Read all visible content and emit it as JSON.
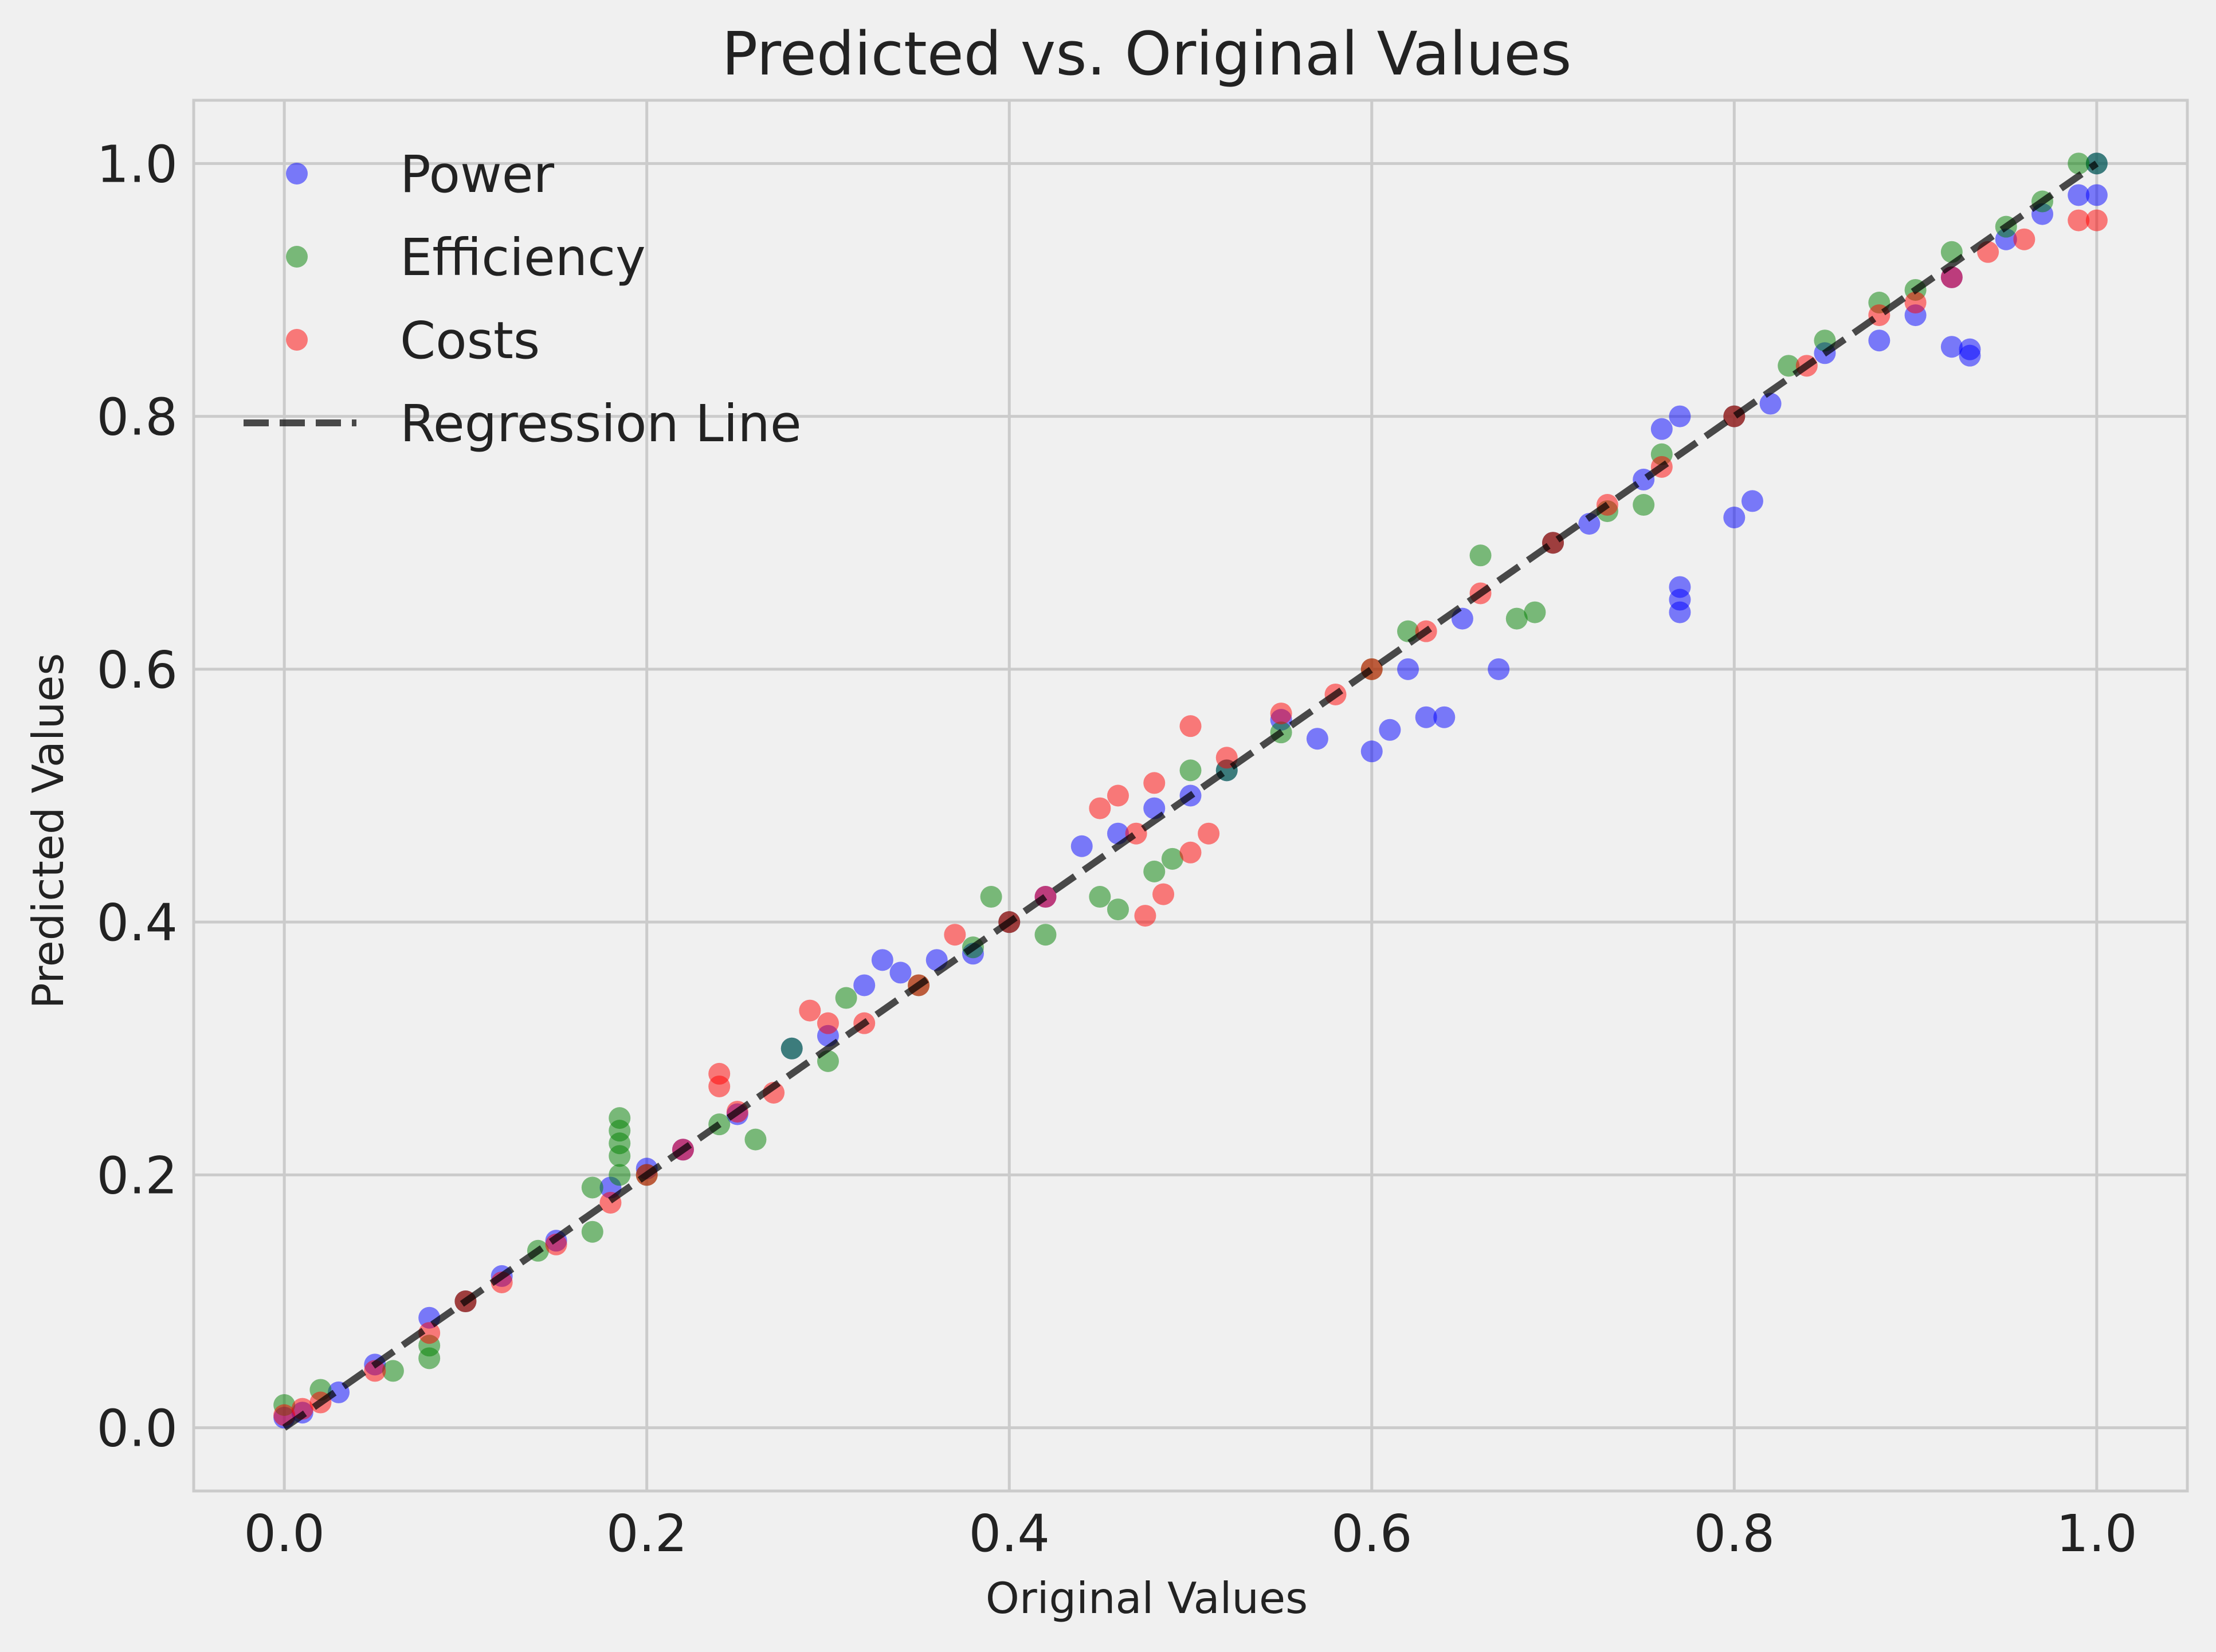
{
  "chart_data": {
    "type": "scatter",
    "title": "Predicted vs. Original Values",
    "xlabel": "Original Values",
    "ylabel": "Predicted Values",
    "xlim": [
      -0.05,
      1.05
    ],
    "ylim": [
      -0.05,
      1.05
    ],
    "xticks": [
      0.0,
      0.2,
      0.4,
      0.6,
      0.8,
      1.0
    ],
    "yticks": [
      0.0,
      0.2,
      0.4,
      0.6,
      0.8,
      1.0
    ],
    "xtick_labels": [
      "0.0",
      "0.2",
      "0.4",
      "0.6",
      "0.8",
      "1.0"
    ],
    "ytick_labels": [
      "0.0",
      "0.2",
      "0.4",
      "0.6",
      "0.8",
      "1.0"
    ],
    "grid": true,
    "legend_position": "top-left",
    "background_color": "#f0f0f0",
    "series": [
      {
        "name": "Power",
        "color": "#0000ff",
        "alpha": 0.5,
        "points": [
          [
            0.0,
            0.008
          ],
          [
            0.01,
            0.012
          ],
          [
            0.03,
            0.028
          ],
          [
            0.05,
            0.05
          ],
          [
            0.08,
            0.087
          ],
          [
            0.1,
            0.1
          ],
          [
            0.12,
            0.12
          ],
          [
            0.15,
            0.148
          ],
          [
            0.18,
            0.19
          ],
          [
            0.2,
            0.205
          ],
          [
            0.22,
            0.22
          ],
          [
            0.25,
            0.248
          ],
          [
            0.28,
            0.3
          ],
          [
            0.3,
            0.31
          ],
          [
            0.32,
            0.35
          ],
          [
            0.33,
            0.37
          ],
          [
            0.34,
            0.36
          ],
          [
            0.36,
            0.37
          ],
          [
            0.38,
            0.375
          ],
          [
            0.4,
            0.4
          ],
          [
            0.42,
            0.42
          ],
          [
            0.44,
            0.46
          ],
          [
            0.46,
            0.47
          ],
          [
            0.48,
            0.49
          ],
          [
            0.5,
            0.5
          ],
          [
            0.52,
            0.52
          ],
          [
            0.55,
            0.56
          ],
          [
            0.57,
            0.545
          ],
          [
            0.6,
            0.535
          ],
          [
            0.61,
            0.552
          ],
          [
            0.63,
            0.562
          ],
          [
            0.64,
            0.562
          ],
          [
            0.67,
            0.6
          ],
          [
            0.62,
            0.6
          ],
          [
            0.65,
            0.64
          ],
          [
            0.7,
            0.7
          ],
          [
            0.72,
            0.715
          ],
          [
            0.75,
            0.75
          ],
          [
            0.76,
            0.79
          ],
          [
            0.77,
            0.8
          ],
          [
            0.77,
            0.665
          ],
          [
            0.77,
            0.655
          ],
          [
            0.77,
            0.645
          ],
          [
            0.8,
            0.72
          ],
          [
            0.81,
            0.733
          ],
          [
            0.8,
            0.8
          ],
          [
            0.82,
            0.81
          ],
          [
            0.85,
            0.85
          ],
          [
            0.88,
            0.86
          ],
          [
            0.9,
            0.88
          ],
          [
            0.92,
            0.91
          ],
          [
            0.93,
            0.853
          ],
          [
            0.93,
            0.848
          ],
          [
            0.92,
            0.855
          ],
          [
            0.95,
            0.94
          ],
          [
            0.97,
            0.96
          ],
          [
            0.99,
            0.975
          ],
          [
            1.0,
            0.975
          ],
          [
            1.0,
            1.0
          ]
        ]
      },
      {
        "name": "Efficiency",
        "color": "#008000",
        "alpha": 0.5,
        "points": [
          [
            0.0,
            0.018
          ],
          [
            0.02,
            0.03
          ],
          [
            0.06,
            0.045
          ],
          [
            0.08,
            0.055
          ],
          [
            0.08,
            0.065
          ],
          [
            0.1,
            0.1
          ],
          [
            0.14,
            0.14
          ],
          [
            0.17,
            0.155
          ],
          [
            0.17,
            0.19
          ],
          [
            0.185,
            0.2
          ],
          [
            0.185,
            0.215
          ],
          [
            0.185,
            0.225
          ],
          [
            0.185,
            0.235
          ],
          [
            0.185,
            0.245
          ],
          [
            0.2,
            0.2
          ],
          [
            0.24,
            0.24
          ],
          [
            0.26,
            0.228
          ],
          [
            0.28,
            0.3
          ],
          [
            0.3,
            0.29
          ],
          [
            0.31,
            0.34
          ],
          [
            0.35,
            0.35
          ],
          [
            0.38,
            0.38
          ],
          [
            0.39,
            0.42
          ],
          [
            0.42,
            0.39
          ],
          [
            0.4,
            0.4
          ],
          [
            0.45,
            0.42
          ],
          [
            0.46,
            0.41
          ],
          [
            0.48,
            0.44
          ],
          [
            0.49,
            0.45
          ],
          [
            0.5,
            0.52
          ],
          [
            0.52,
            0.52
          ],
          [
            0.55,
            0.55
          ],
          [
            0.6,
            0.6
          ],
          [
            0.62,
            0.63
          ],
          [
            0.66,
            0.69
          ],
          [
            0.68,
            0.64
          ],
          [
            0.69,
            0.645
          ],
          [
            0.7,
            0.7
          ],
          [
            0.73,
            0.725
          ],
          [
            0.75,
            0.73
          ],
          [
            0.76,
            0.77
          ],
          [
            0.8,
            0.8
          ],
          [
            0.83,
            0.84
          ],
          [
            0.85,
            0.86
          ],
          [
            0.88,
            0.89
          ],
          [
            0.9,
            0.9
          ],
          [
            0.92,
            0.93
          ],
          [
            0.95,
            0.95
          ],
          [
            0.97,
            0.97
          ],
          [
            0.99,
            1.0
          ],
          [
            1.0,
            1.0
          ]
        ]
      },
      {
        "name": "Costs",
        "color": "#ff0000",
        "alpha": 0.5,
        "points": [
          [
            0.0,
            0.01
          ],
          [
            0.01,
            0.015
          ],
          [
            0.02,
            0.02
          ],
          [
            0.05,
            0.045
          ],
          [
            0.08,
            0.075
          ],
          [
            0.1,
            0.1
          ],
          [
            0.12,
            0.115
          ],
          [
            0.15,
            0.145
          ],
          [
            0.18,
            0.178
          ],
          [
            0.2,
            0.2
          ],
          [
            0.22,
            0.22
          ],
          [
            0.24,
            0.27
          ],
          [
            0.24,
            0.28
          ],
          [
            0.25,
            0.25
          ],
          [
            0.27,
            0.265
          ],
          [
            0.29,
            0.33
          ],
          [
            0.3,
            0.32
          ],
          [
            0.32,
            0.32
          ],
          [
            0.35,
            0.35
          ],
          [
            0.37,
            0.39
          ],
          [
            0.4,
            0.4
          ],
          [
            0.42,
            0.42
          ],
          [
            0.45,
            0.49
          ],
          [
            0.46,
            0.5
          ],
          [
            0.47,
            0.47
          ],
          [
            0.48,
            0.51
          ],
          [
            0.475,
            0.405
          ],
          [
            0.485,
            0.422
          ],
          [
            0.5,
            0.555
          ],
          [
            0.5,
            0.455
          ],
          [
            0.51,
            0.47
          ],
          [
            0.52,
            0.53
          ],
          [
            0.55,
            0.565
          ],
          [
            0.58,
            0.58
          ],
          [
            0.6,
            0.6
          ],
          [
            0.63,
            0.63
          ],
          [
            0.66,
            0.66
          ],
          [
            0.7,
            0.7
          ],
          [
            0.73,
            0.73
          ],
          [
            0.76,
            0.76
          ],
          [
            0.8,
            0.8
          ],
          [
            0.84,
            0.84
          ],
          [
            0.88,
            0.88
          ],
          [
            0.9,
            0.89
          ],
          [
            0.92,
            0.91
          ],
          [
            0.94,
            0.93
          ],
          [
            0.96,
            0.94
          ],
          [
            0.99,
            0.955
          ],
          [
            1.0,
            0.955
          ]
        ]
      }
    ],
    "regression_line": {
      "name": "Regression Line",
      "color": "#000000",
      "alpha": 0.7,
      "style": "dashed",
      "from": [
        0.0,
        0.0
      ],
      "to": [
        1.0,
        1.0
      ]
    }
  }
}
